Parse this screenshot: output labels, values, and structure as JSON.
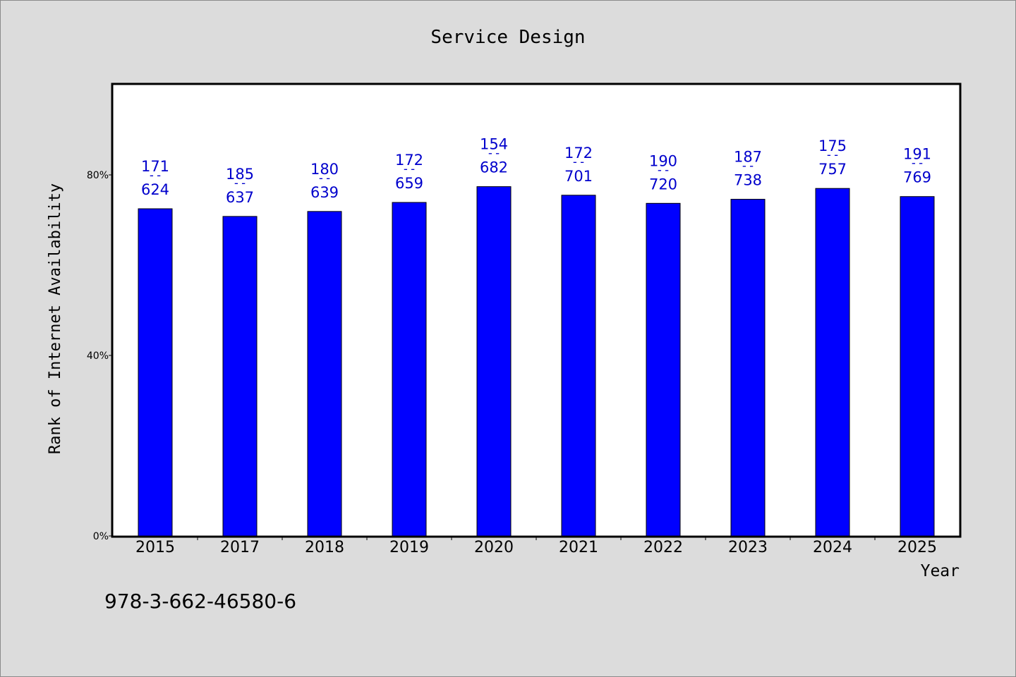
{
  "chart_data": {
    "type": "bar",
    "title": "Service Design",
    "xlabel": "Year",
    "ylabel": "Rank of Internet Availability",
    "categories": [
      "2015",
      "2017",
      "2018",
      "2019",
      "2020",
      "2021",
      "2022",
      "2023",
      "2024",
      "2025"
    ],
    "values": [
      72.5,
      70.8,
      71.9,
      73.9,
      77.4,
      75.5,
      73.7,
      74.6,
      77.0,
      75.2
    ],
    "labels_top": [
      "171",
      "185",
      "180",
      "172",
      "154",
      "172",
      "190",
      "187",
      "175",
      "191"
    ],
    "labels_bottom": [
      "624",
      "637",
      "639",
      "659",
      "682",
      "701",
      "720",
      "738",
      "757",
      "769"
    ],
    "label_separator": "--",
    "yticks": [
      "0%",
      "40%",
      "80%"
    ],
    "ytick_values": [
      0,
      40,
      80
    ],
    "ylim": [
      0,
      100
    ],
    "bar_color": "#0000ff",
    "label_color": "#0000cc",
    "grid": false
  },
  "footer_text": "978-3-662-46580-6"
}
